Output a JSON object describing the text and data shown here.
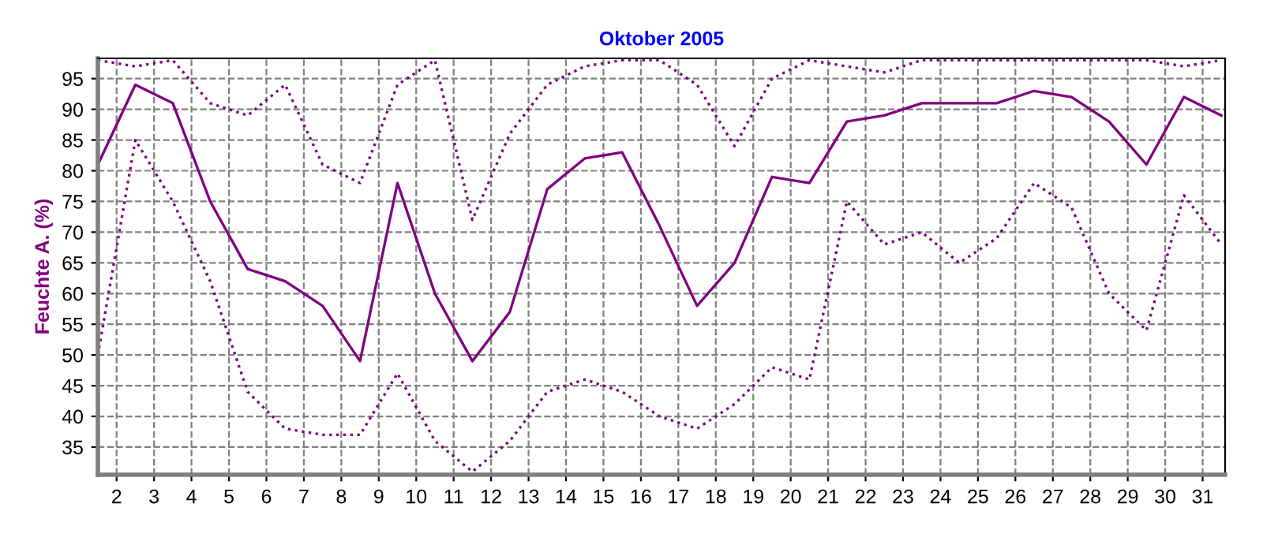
{
  "chart_data": {
    "type": "line",
    "title": "Oktober 2005",
    "ylabel": "Feuchte A. (%)",
    "x": [
      1.5,
      2.5,
      3.5,
      4.5,
      5.5,
      6.5,
      7.5,
      8.5,
      9.5,
      10.5,
      11.5,
      12.5,
      13.5,
      14.5,
      15.5,
      16.5,
      17.5,
      18.5,
      19.5,
      20.5,
      21.5,
      22.5,
      23.5,
      24.5,
      25.5,
      26.5,
      27.5,
      28.5,
      29.5,
      30.5,
      31.5
    ],
    "series": [
      {
        "color": "#800080",
        "line_style": "dotted",
        "values": [
          98,
          97,
          98,
          91,
          89,
          94,
          81,
          78,
          94,
          98,
          72,
          86,
          94,
          97,
          98,
          98,
          94,
          84,
          95,
          98,
          97,
          96,
          98,
          98,
          98,
          98,
          98,
          98,
          98,
          97,
          98
        ]
      },
      {
        "color": "#800080",
        "line_style": "solid",
        "values": [
          81,
          94,
          91,
          75,
          64,
          62,
          58,
          49,
          78,
          60,
          49,
          57,
          77,
          82,
          83,
          71,
          58,
          65,
          79,
          78,
          88,
          89,
          91,
          91,
          91,
          93,
          92,
          88,
          81,
          92,
          89
        ]
      },
      {
        "color": "#800080",
        "line_style": "dotted",
        "values": [
          50,
          85,
          75,
          62,
          44,
          38,
          37,
          37,
          47,
          36,
          31,
          36,
          44,
          46,
          44,
          40,
          38,
          42,
          48,
          46,
          75,
          68,
          70,
          65,
          69,
          78,
          74,
          60,
          54,
          76,
          68
        ]
      }
    ],
    "xlim": [
      1.5,
      31.6
    ],
    "xticks": [
      2,
      3,
      4,
      5,
      6,
      7,
      8,
      9,
      10,
      11,
      12,
      13,
      14,
      15,
      16,
      17,
      18,
      19,
      20,
      21,
      22,
      23,
      24,
      25,
      26,
      27,
      28,
      29,
      30,
      31
    ],
    "ylim": [
      30.5,
      98.3
    ],
    "yticks": [
      35,
      40,
      45,
      50,
      55,
      60,
      65,
      70,
      75,
      80,
      85,
      90,
      95
    ],
    "grid": true,
    "marker": "none"
  }
}
